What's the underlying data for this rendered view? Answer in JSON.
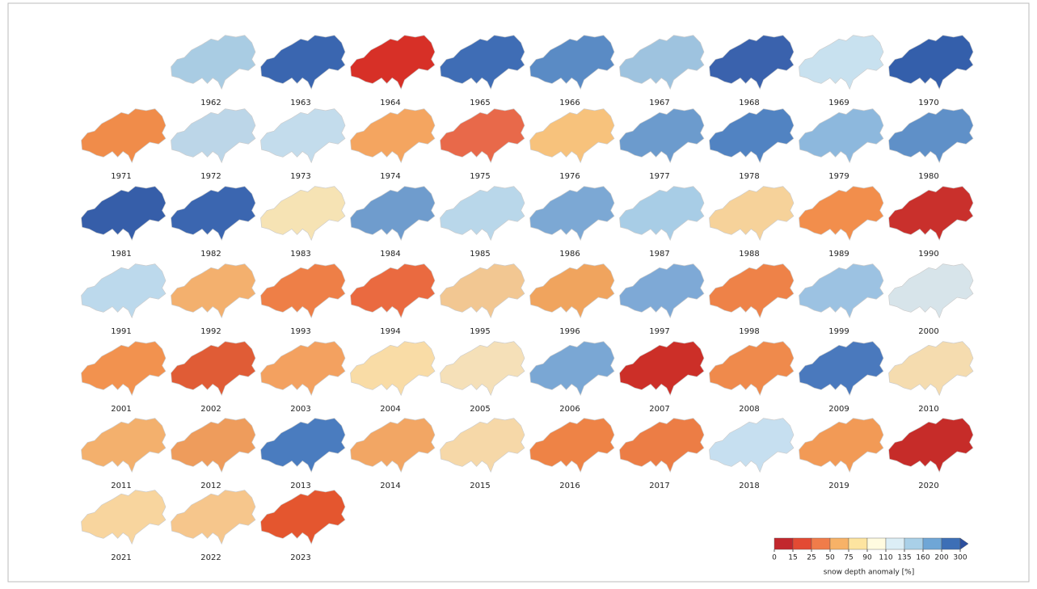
{
  "panels": [
    {
      "year": "1962",
      "color": "#a9cce3"
    },
    {
      "year": "1963",
      "color": "#3a66b0"
    },
    {
      "year": "1964",
      "color": "#d73027"
    },
    {
      "year": "1965",
      "color": "#3f6db5"
    },
    {
      "year": "1966",
      "color": "#5a8bc5"
    },
    {
      "year": "1967",
      "color": "#9ec3df"
    },
    {
      "year": "1968",
      "color": "#3a62ad"
    },
    {
      "year": "1969",
      "color": "#c8e1ef"
    },
    {
      "year": "1970",
      "color": "#345fab"
    },
    {
      "year": "1971",
      "color": "#f08c4a"
    },
    {
      "year": "1972",
      "color": "#bcd6e8"
    },
    {
      "year": "1973",
      "color": "#c3dcec"
    },
    {
      "year": "1974",
      "color": "#f4a560"
    },
    {
      "year": "1975",
      "color": "#e8694a"
    },
    {
      "year": "1976",
      "color": "#f7c27c"
    },
    {
      "year": "1977",
      "color": "#6c9bcd"
    },
    {
      "year": "1978",
      "color": "#5183c2"
    },
    {
      "year": "1979",
      "color": "#8db8dd"
    },
    {
      "year": "1980",
      "color": "#5f90c8"
    },
    {
      "year": "1981",
      "color": "#365ea9"
    },
    {
      "year": "1982",
      "color": "#3b66b0"
    },
    {
      "year": "1983",
      "color": "#f6e3b4"
    },
    {
      "year": "1984",
      "color": "#6f9ccd"
    },
    {
      "year": "1985",
      "color": "#b9d7ea"
    },
    {
      "year": "1986",
      "color": "#7ca8d4"
    },
    {
      "year": "1987",
      "color": "#a8cde6"
    },
    {
      "year": "1988",
      "color": "#f6d29a"
    },
    {
      "year": "1989",
      "color": "#f28e4c"
    },
    {
      "year": "1990",
      "color": "#c9302c"
    },
    {
      "year": "1991",
      "color": "#bcd9ec"
    },
    {
      "year": "1992",
      "color": "#f3b06e"
    },
    {
      "year": "1993",
      "color": "#ee7f47"
    },
    {
      "year": "1994",
      "color": "#ea6a40"
    },
    {
      "year": "1995",
      "color": "#f2c792"
    },
    {
      "year": "1996",
      "color": "#f0a45e"
    },
    {
      "year": "1997",
      "color": "#7ea9d6"
    },
    {
      "year": "1998",
      "color": "#ee8248"
    },
    {
      "year": "1999",
      "color": "#9cc2e2"
    },
    {
      "year": "2000",
      "color": "#d7e4ea"
    },
    {
      "year": "2001",
      "color": "#f2924f"
    },
    {
      "year": "2002",
      "color": "#e05c36"
    },
    {
      "year": "2003",
      "color": "#f3a160"
    },
    {
      "year": "2004",
      "color": "#f9dca6"
    },
    {
      "year": "2005",
      "color": "#f5e0b8"
    },
    {
      "year": "2006",
      "color": "#7aa7d4"
    },
    {
      "year": "2007",
      "color": "#cc2f28"
    },
    {
      "year": "2008",
      "color": "#ef8a4c"
    },
    {
      "year": "2009",
      "color": "#4a79bd"
    },
    {
      "year": "2010",
      "color": "#f5dcaf"
    },
    {
      "year": "2011",
      "color": "#f3b06d"
    },
    {
      "year": "2012",
      "color": "#ee9c5c"
    },
    {
      "year": "2013",
      "color": "#4a7cbf"
    },
    {
      "year": "2014",
      "color": "#f2a664"
    },
    {
      "year": "2015",
      "color": "#f6d8a8"
    },
    {
      "year": "2016",
      "color": "#ee8346"
    },
    {
      "year": "2017",
      "color": "#ec7d45"
    },
    {
      "year": "2018",
      "color": "#c6dff0"
    },
    {
      "year": "2019",
      "color": "#f29a56"
    },
    {
      "year": "2020",
      "color": "#c62c29"
    },
    {
      "year": "2021",
      "color": "#f8d59e"
    },
    {
      "year": "2022",
      "color": "#f6c68c"
    },
    {
      "year": "2023",
      "color": "#e4562f"
    }
  ],
  "colorbar": {
    "label": "snow depth anomaly [%]",
    "ticks": [
      0,
      15,
      25,
      50,
      75,
      90,
      110,
      135,
      160,
      200,
      300
    ],
    "colors": [
      "#c2272d",
      "#e34a33",
      "#f07c4a",
      "#f7b267",
      "#fde4a0",
      "#fffbe0",
      "#dceef6",
      "#a9d0e8",
      "#6fa6d6",
      "#3d6fb6"
    ],
    "extend_color": "#2c4f9e"
  }
}
